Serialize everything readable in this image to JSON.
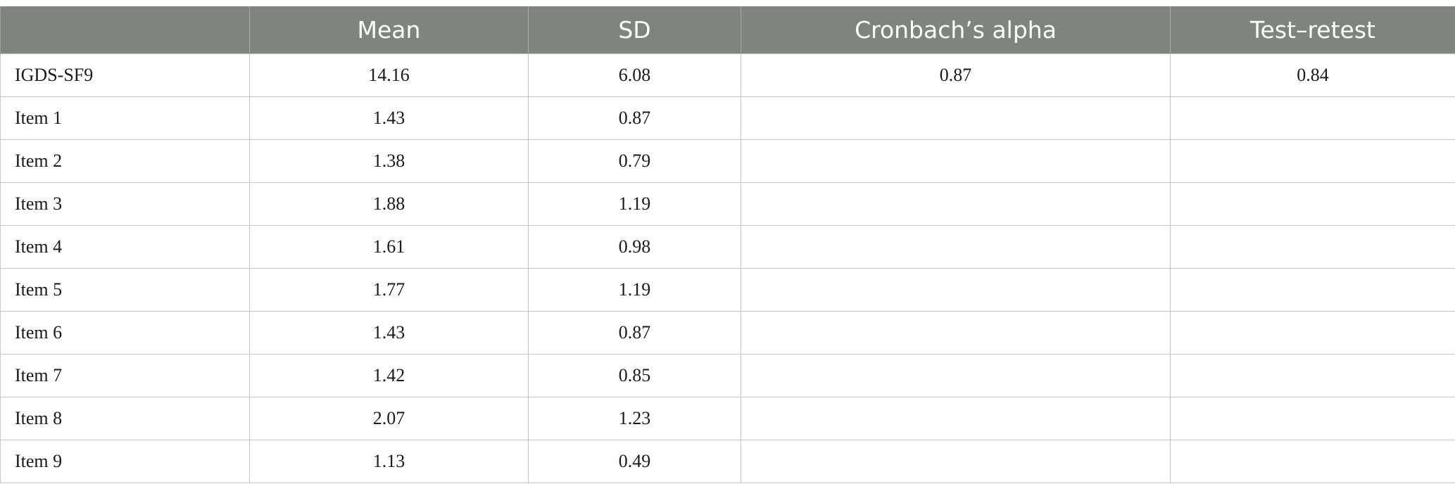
{
  "table": {
    "headers": [
      "",
      "Mean",
      "SD",
      "Cronbach’s alpha",
      "Test–retest"
    ],
    "rows": [
      {
        "label": "IGDS-SF9",
        "mean": "14.16",
        "sd": "6.08",
        "alpha": "0.87",
        "retest": "0.84"
      },
      {
        "label": "Item 1",
        "mean": "1.43",
        "sd": "0.87",
        "alpha": "",
        "retest": ""
      },
      {
        "label": "Item 2",
        "mean": "1.38",
        "sd": "0.79",
        "alpha": "",
        "retest": ""
      },
      {
        "label": "Item 3",
        "mean": "1.88",
        "sd": "1.19",
        "alpha": "",
        "retest": ""
      },
      {
        "label": "Item 4",
        "mean": "1.61",
        "sd": "0.98",
        "alpha": "",
        "retest": ""
      },
      {
        "label": "Item 5",
        "mean": "1.77",
        "sd": "1.19",
        "alpha": "",
        "retest": ""
      },
      {
        "label": "Item 6",
        "mean": "1.43",
        "sd": "0.87",
        "alpha": "",
        "retest": ""
      },
      {
        "label": "Item 7",
        "mean": "1.42",
        "sd": "0.85",
        "alpha": "",
        "retest": ""
      },
      {
        "label": "Item 8",
        "mean": "2.07",
        "sd": "1.23",
        "alpha": "",
        "retest": ""
      },
      {
        "label": "Item 9",
        "mean": "1.13",
        "sd": "0.49",
        "alpha": "",
        "retest": ""
      }
    ]
  }
}
